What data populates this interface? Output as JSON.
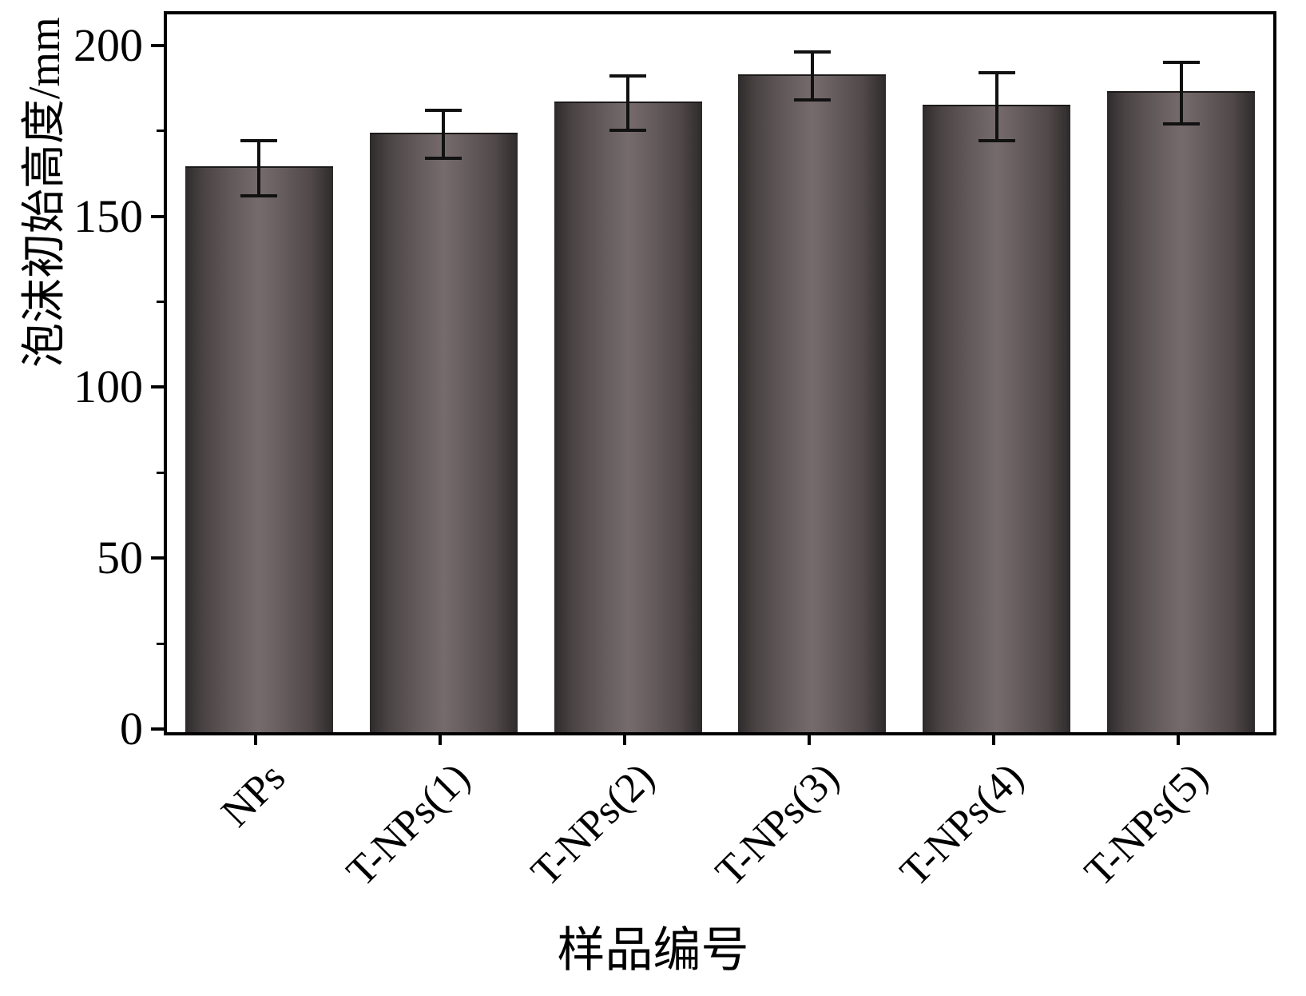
{
  "chart_data": {
    "type": "bar",
    "categories": [
      "NPs",
      "T-NPs(1)",
      "T-NPs(2)",
      "T-NPs(3)",
      "T-NPs(4)",
      "T-NPs(5)"
    ],
    "values": [
      165,
      175,
      184,
      192,
      183,
      187
    ],
    "errors": [
      8,
      7,
      8,
      7,
      10,
      9
    ],
    "title": "",
    "xlabel": "样品编号",
    "ylabel": "泡沫初始高度/mm",
    "ylim": [
      0,
      210
    ],
    "yticks": [
      0,
      50,
      100,
      150,
      200
    ],
    "grid": false,
    "legend": "none",
    "bar_color": "#6e6465",
    "bar_edge_color": "#2e2a2b",
    "error_bar_color": "#111111",
    "axis_color": "#000000",
    "background_color": "#ffffff"
  }
}
